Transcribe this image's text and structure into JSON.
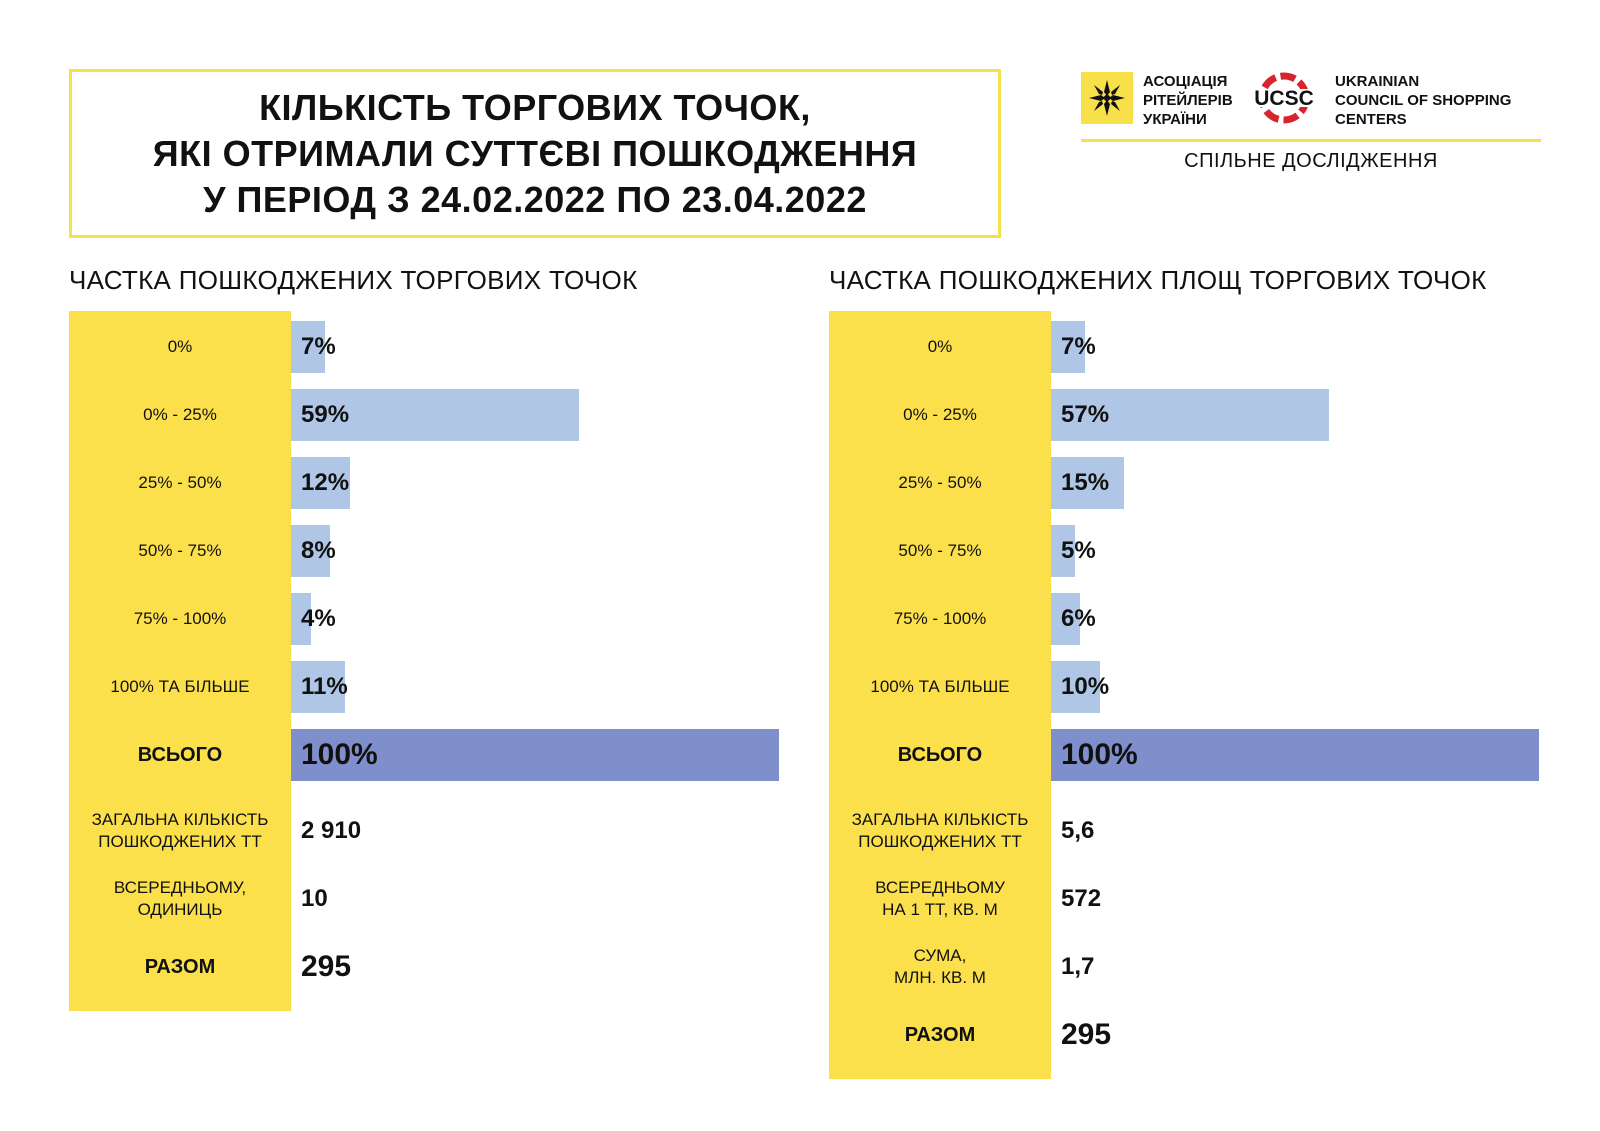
{
  "title": {
    "lines": [
      "КІЛЬКІСТЬ ТОРГОВИХ ТОЧОК,",
      "ЯКІ ОТРИМАЛИ СУТТЄВІ ПОШКОДЖЕННЯ",
      "У ПЕРІОД З 24.02.2022 ПО 23.04.2022"
    ]
  },
  "header": {
    "arua_lines": [
      "АСОЦІАЦІЯ",
      "РІТЕЙЛЕРІВ",
      "УКРАЇНИ"
    ],
    "ucsc_abbr": "UCSC",
    "ucsc_lines": [
      "UKRAINIAN",
      "COUNCIL OF SHOPPING",
      "CENTERS"
    ],
    "joint_study": "СПІЛЬНЕ ДОСЛІДЖЕННЯ",
    "arua_logo_icon": "star-ornament-icon",
    "ucsc_logo_icon": "ucsc-ring-icon",
    "colors": {
      "accent_yellow": "#fbe04c",
      "ucsc_red": "#d8242c"
    }
  },
  "chart_data": [
    {
      "type": "bar",
      "orientation": "horizontal",
      "title": "ЧАСТКА ПОШКОДЖЕНИХ ТОРГОВИХ ТОЧОК",
      "categories": [
        "0%",
        "0% - 25%",
        "25% - 50%",
        "50% - 75%",
        "75% - 100%",
        "100% ТА БІЛЬШЕ",
        "ВСЬОГО"
      ],
      "values": [
        7,
        59,
        12,
        8,
        4,
        11,
        100
      ],
      "value_labels": [
        "7%",
        "59%",
        "12%",
        "8%",
        "4%",
        "11%",
        "100%"
      ],
      "xlim": [
        0,
        100
      ],
      "colors": {
        "bar": "#afc6e7",
        "total_bar": "#7f8fcb"
      },
      "stats": [
        {
          "label": "ЗАГАЛЬНА КІЛЬКІСТЬ\nПОШКОДЖЕНИХ ТТ",
          "value": "2 910"
        },
        {
          "label": "ВСЕРЕДНЬОМУ,\nОДИНИЦЬ",
          "value": "10"
        },
        {
          "label": "РАЗОМ",
          "value": "295"
        }
      ]
    },
    {
      "type": "bar",
      "orientation": "horizontal",
      "title": "ЧАСТКА ПОШКОДЖЕНИХ ПЛОЩ ТОРГОВИХ ТОЧОК",
      "categories": [
        "0%",
        "0% - 25%",
        "25% - 50%",
        "50% - 75%",
        "75% - 100%",
        "100% ТА БІЛЬШЕ",
        "ВСЬОГО"
      ],
      "values": [
        7,
        57,
        15,
        5,
        6,
        10,
        100
      ],
      "value_labels": [
        "7%",
        "57%",
        "15%",
        "5%",
        "6%",
        "10%",
        "100%"
      ],
      "xlim": [
        0,
        100
      ],
      "colors": {
        "bar": "#afc6e7",
        "total_bar": "#7f8fcb"
      },
      "stats": [
        {
          "label": "ЗАГАЛЬНА КІЛЬКІСТЬ\nПОШКОДЖЕНИХ ТТ",
          "value": "5,6"
        },
        {
          "label": "ВСЕРЕДНЬОМУ\nНА 1 ТТ, КВ. М",
          "value": "572"
        },
        {
          "label": "СУМА,\nМЛН. КВ. М",
          "value": "1,7"
        },
        {
          "label": "РАЗОМ",
          "value": "295"
        }
      ]
    }
  ]
}
